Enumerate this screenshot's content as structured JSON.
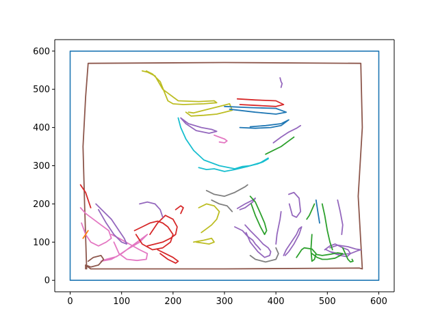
{
  "chart_data": {
    "type": "line",
    "title": "",
    "xlabel": "",
    "ylabel": "",
    "xlim": [
      -30,
      630
    ],
    "ylim": [
      -30,
      630
    ],
    "xticks": [
      0,
      100,
      200,
      300,
      400,
      500,
      600
    ],
    "yticks": [
      0,
      100,
      200,
      300,
      400,
      500,
      600
    ],
    "xtick_labels": [
      "0",
      "100",
      "200",
      "300",
      "400",
      "500",
      "600"
    ],
    "ytick_labels": [
      "0",
      "100",
      "200",
      "300",
      "400",
      "500",
      "600"
    ],
    "grid": false,
    "legend": "none",
    "series": [
      {
        "color": "#1f77b4",
        "x": [
          0,
          600,
          600,
          0,
          0
        ],
        "y": [
          0,
          0,
          600,
          600,
          0
        ]
      },
      {
        "color": "#8c564b",
        "x": [
          32,
          28,
          25,
          30,
          35,
          300,
          565,
          568,
          560,
          568,
          562,
          300,
          40,
          30,
          30
        ],
        "y": [
          30,
          200,
          350,
          480,
          568,
          570,
          568,
          400,
          220,
          30,
          32,
          30,
          30,
          40,
          30
        ]
      },
      {
        "color": "#bcbd22",
        "x": [
          140,
          150,
          165,
          180,
          210,
          250,
          280,
          285,
          260,
          220,
          200,
          190,
          175,
          160,
          148
        ],
        "y": [
          548,
          545,
          535,
          500,
          470,
          468,
          470,
          465,
          462,
          460,
          462,
          470,
          520,
          540,
          548
        ]
      },
      {
        "color": "#bcbd22",
        "x": [
          225,
          235,
          260,
          285,
          300,
          315,
          310,
          290,
          260,
          240,
          230
        ],
        "y": [
          440,
          430,
          432,
          435,
          440,
          445,
          462,
          455,
          445,
          438,
          440
        ]
      },
      {
        "color": "#d62728",
        "x": [
          325,
          360,
          400,
          415,
          400,
          360,
          330
        ],
        "y": [
          475,
          472,
          470,
          460,
          455,
          458,
          460
        ]
      },
      {
        "color": "#1f77b4",
        "x": [
          300,
          350,
          400,
          420,
          400,
          360,
          310
        ],
        "y": [
          455,
          452,
          450,
          440,
          435,
          440,
          448
        ]
      },
      {
        "color": "#9467bd",
        "x": [
          215,
          230,
          255,
          275,
          285,
          270,
          245,
          225,
          215
        ],
        "y": [
          425,
          410,
          400,
          395,
          390,
          385,
          392,
          410,
          425
        ]
      },
      {
        "color": "#1f77b4",
        "x": [
          330,
          360,
          390,
          410,
          420,
          425,
          410,
          380,
          350
        ],
        "y": [
          400,
          398,
          400,
          405,
          415,
          420,
          410,
          405,
          402
        ]
      },
      {
        "color": "#9467bd",
        "x": [
          395,
          410,
          425,
          440,
          448
        ],
        "y": [
          360,
          375,
          388,
          398,
          405
        ]
      },
      {
        "color": "#17becf",
        "x": [
          210,
          215,
          225,
          240,
          260,
          290,
          320,
          335,
          350,
          365,
          375,
          385
        ],
        "y": [
          425,
          400,
          370,
          340,
          315,
          300,
          292,
          298,
          300,
          305,
          310,
          318
        ]
      },
      {
        "color": "#17becf",
        "x": [
          250,
          265,
          280,
          300,
          320,
          345,
          370,
          385
        ],
        "y": [
          295,
          290,
          292,
          285,
          290,
          298,
          308,
          320
        ]
      },
      {
        "color": "#7f7f7f",
        "x": [
          265,
          280,
          300,
          320,
          340,
          345
        ],
        "y": [
          235,
          225,
          220,
          230,
          245,
          250
        ]
      },
      {
        "color": "#7f7f7f",
        "x": [
          275,
          290,
          305,
          315
        ],
        "y": [
          210,
          200,
          195,
          180
        ]
      },
      {
        "color": "#9467bd",
        "x": [
          325,
          340,
          355,
          360,
          355,
          340,
          330
        ],
        "y": [
          188,
          200,
          210,
          215,
          205,
          190,
          185
        ]
      },
      {
        "color": "#bcbd22",
        "x": [
          250,
          265,
          280,
          290,
          285,
          275,
          265,
          255
        ],
        "y": [
          190,
          200,
          195,
          180,
          160,
          145,
          135,
          125
        ]
      },
      {
        "color": "#bcbd22",
        "x": [
          240,
          260,
          275,
          280,
          270,
          255,
          245
        ],
        "y": [
          100,
          105,
          110,
          100,
          95,
          98,
          100
        ]
      },
      {
        "color": "#2ca02c",
        "x": [
          350,
          360,
          370,
          378,
          382,
          378,
          370,
          360,
          352
        ],
        "y": [
          220,
          205,
          175,
          150,
          130,
          120,
          140,
          170,
          200
        ]
      },
      {
        "color": "#9467bd",
        "x": [
          320,
          335,
          345,
          355,
          360,
          365,
          370
        ],
        "y": [
          140,
          130,
          115,
          105,
          95,
          88,
          80
        ]
      },
      {
        "color": "#9467bd",
        "x": [
          340,
          350,
          365,
          375,
          385,
          390,
          388,
          378,
          365,
          350,
          342
        ],
        "y": [
          145,
          130,
          110,
          95,
          85,
          75,
          65,
          60,
          75,
          100,
          125
        ]
      },
      {
        "color": "#7f7f7f",
        "x": [
          350,
          360,
          380,
          400,
          405,
          400
        ],
        "y": [
          65,
          55,
          48,
          55,
          70,
          85
        ]
      },
      {
        "color": "#9467bd",
        "x": [
          415,
          420,
          430,
          440,
          445,
          450,
          445,
          435,
          425,
          418
        ],
        "y": [
          65,
          80,
          100,
          120,
          135,
          140,
          120,
          95,
          75,
          65
        ]
      },
      {
        "color": "#9467bd",
        "x": [
          425,
          435,
          445,
          448,
          440,
          432,
          426
        ],
        "y": [
          225,
          230,
          215,
          180,
          165,
          170,
          200
        ]
      },
      {
        "color": "#9467bd",
        "x": [
          400,
          402,
          405,
          408,
          410
        ],
        "y": [
          95,
          120,
          140,
          160,
          180
        ]
      },
      {
        "color": "#2ca02c",
        "x": [
          440,
          445,
          450,
          455,
          470,
          478,
          475,
          470,
          468,
          470
        ],
        "y": [
          60,
          70,
          80,
          85,
          82,
          70,
          55,
          50,
          80,
          120
        ]
      },
      {
        "color": "#2ca02c",
        "x": [
          460,
          465,
          470,
          475
        ],
        "y": [
          160,
          170,
          185,
          200
        ]
      },
      {
        "color": "#9467bd",
        "x": [
          495,
          505,
          515,
          520,
          530,
          540,
          545,
          538,
          525,
          510,
          498
        ],
        "y": [
          80,
          90,
          95,
          92,
          85,
          80,
          70,
          62,
          65,
          72,
          80
        ]
      },
      {
        "color": "#9467bd",
        "x": [
          505,
          515,
          530,
          545,
          560,
          565,
          555,
          540,
          520,
          505
        ],
        "y": [
          75,
          72,
          68,
          70,
          78,
          80,
          82,
          88,
          92,
          85
        ]
      },
      {
        "color": "#2ca02c",
        "x": [
          470,
          480,
          490,
          500,
          515,
          525,
          530,
          520,
          505,
          490,
          478
        ],
        "y": [
          70,
          60,
          55,
          55,
          58,
          65,
          70,
          72,
          68,
          65,
          68
        ]
      },
      {
        "color": "#2ca02c",
        "x": [
          490,
          495,
          500,
          505,
          510
        ],
        "y": [
          200,
          170,
          130,
          100,
          80
        ]
      },
      {
        "color": "#1f77b4",
        "x": [
          478,
          482,
          485
        ],
        "y": [
          210,
          175,
          150
        ]
      },
      {
        "color": "#9467bd",
        "x": [
          520,
          525,
          530,
          528
        ],
        "y": [
          210,
          180,
          145,
          120
        ]
      },
      {
        "color": "#2ca02c",
        "x": [
          530,
          535,
          540,
          545,
          550,
          548
        ],
        "y": [
          85,
          70,
          55,
          48,
          50,
          55
        ]
      },
      {
        "color": "#d62728",
        "x": [
          20,
          25,
          30,
          35,
          40
        ],
        "y": [
          250,
          240,
          230,
          210,
          190
        ]
      },
      {
        "color": "#e377c2",
        "x": [
          20,
          30,
          45,
          60,
          75,
          80,
          70,
          55,
          40,
          30,
          22
        ],
        "y": [
          190,
          175,
          160,
          145,
          130,
          110,
          100,
          90,
          100,
          120,
          150
        ]
      },
      {
        "color": "#e377c2",
        "x": [
          60,
          80,
          100,
          120,
          140,
          150,
          135,
          110,
          90,
          70,
          60
        ],
        "y": [
          50,
          55,
          70,
          90,
          110,
          120,
          100,
          80,
          62,
          55,
          50
        ]
      },
      {
        "color": "#e377c2",
        "x": [
          80,
          95,
          115,
          135,
          150,
          148,
          130,
          110,
          95,
          85
        ],
        "y": [
          120,
          110,
          95,
          80,
          70,
          55,
          52,
          55,
          70,
          100
        ]
      },
      {
        "color": "#9467bd",
        "x": [
          50,
          65,
          80,
          95,
          105,
          110,
          100,
          85,
          70,
          55
        ],
        "y": [
          200,
          180,
          160,
          130,
          110,
          95,
          100,
          120,
          150,
          185
        ]
      },
      {
        "color": "#d62728",
        "x": [
          125,
          140,
          155,
          170,
          180,
          190,
          200,
          195,
          180,
          160,
          140,
          128
        ],
        "y": [
          130,
          140,
          150,
          155,
          150,
          140,
          120,
          100,
          85,
          80,
          95,
          120
        ]
      },
      {
        "color": "#d62728",
        "x": [
          150,
          165,
          180,
          195,
          205,
          208,
          200,
          185,
          170,
          155
        ],
        "y": [
          90,
          95,
          100,
          110,
          120,
          140,
          160,
          170,
          150,
          120
        ]
      },
      {
        "color": "#d62728",
        "x": [
          170,
          185,
          200,
          210,
          205,
          190,
          175
        ],
        "y": [
          80,
          70,
          60,
          50,
          45,
          55,
          70
        ]
      },
      {
        "color": "#9467bd",
        "x": [
          135,
          150,
          165,
          175,
          180
        ],
        "y": [
          200,
          205,
          200,
          185,
          165
        ]
      },
      {
        "color": "#d62728",
        "x": [
          205,
          215,
          220,
          215
        ],
        "y": [
          185,
          195,
          190,
          175
        ]
      },
      {
        "color": "#ff7f0e",
        "x": [
          25,
          30,
          35
        ],
        "y": [
          110,
          120,
          130
        ]
      },
      {
        "color": "#8c564b",
        "x": [
          30,
          40,
          55,
          65,
          60,
          45,
          35
        ],
        "y": [
          40,
          35,
          40,
          55,
          65,
          60,
          50
        ]
      },
      {
        "color": "#9467bd",
        "x": [
          408,
          410,
          412,
          410
        ],
        "y": [
          530,
          520,
          515,
          505
        ]
      },
      {
        "color": "#2ca02c",
        "x": [
          380,
          395,
          410,
          425,
          435
        ],
        "y": [
          330,
          340,
          350,
          365,
          375
        ]
      },
      {
        "color": "#e377c2",
        "x": [
          280,
          290,
          300,
          305,
          300,
          290
        ],
        "y": [
          380,
          375,
          370,
          365,
          360,
          362
        ]
      }
    ]
  }
}
